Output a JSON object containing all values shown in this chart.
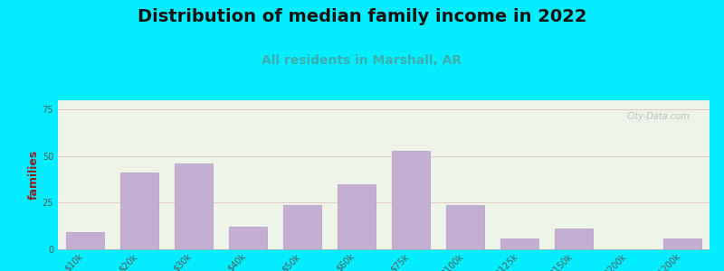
{
  "title": "Distribution of median family income in 2022",
  "subtitle": "All residents in Marshall, AR",
  "ylabel": "families",
  "categories": [
    "$10k",
    "$20k",
    "$30k",
    "$40k",
    "$50k",
    "$60k",
    "$75k",
    "$100k",
    "$125k",
    "$150k",
    "$200k",
    "> $200k"
  ],
  "values": [
    9,
    41,
    46,
    12,
    24,
    35,
    53,
    24,
    6,
    11,
    0,
    6
  ],
  "bar_color": "#c4aed4",
  "bar_edge_color": "#b09ac0",
  "background_outer": "#00eeff",
  "plot_bg_color": "#eef5e8",
  "title_fontsize": 14,
  "title_color": "#111111",
  "subtitle_fontsize": 10,
  "subtitle_color": "#3aacac",
  "ylabel_color": "#8b2020",
  "ylabel_fontsize": 9,
  "yticks": [
    0,
    25,
    50,
    75
  ],
  "ylim": [
    0,
    80
  ],
  "watermark": "City-Data.com",
  "tick_label_color": "#555555",
  "tick_label_fontsize": 7,
  "grid_color": "#e0b8b8",
  "grid_alpha": 0.7,
  "bar_width": 0.7
}
